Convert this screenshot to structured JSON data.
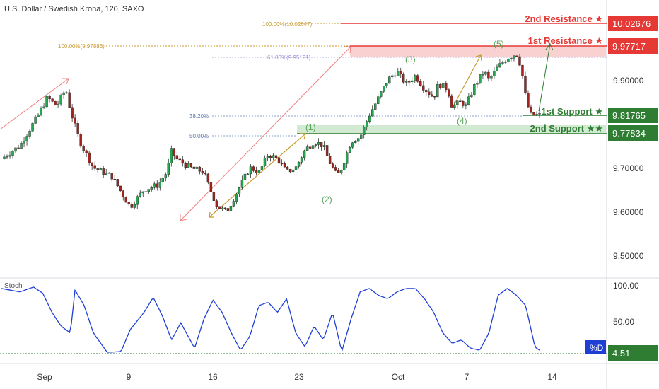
{
  "header": {
    "title": "U.S. Dollar / Swedish Krona, 120, SAXO"
  },
  "levels": [
    {
      "label": "2nd Resistance ★",
      "price": "10.02676",
      "color": "#e53935"
    },
    {
      "label": "1st Resistance ★",
      "price": "9.97717",
      "color": "#e53935"
    },
    {
      "label": "1st Support ★",
      "price": "9.81765",
      "color": "#2e7d32"
    },
    {
      "label": "2nd Support ★★",
      "price": "9.77834",
      "color": "#2e7d32"
    }
  ],
  "fib": {
    "ext1": "100.00%(10.02647)",
    "ext2": "100.00%(9.97886)",
    "ret618": "61.80%(9.95191)",
    "ret382": "38.20%",
    "ret50": "50.00%"
  },
  "waves": [
    "(1)",
    "(2)",
    "(3)",
    "(4)",
    "(5)"
  ],
  "stoch": {
    "label": "Stoch",
    "series_tag": "%D",
    "value": "4.51"
  },
  "chart_data": {
    "type": "candlestick",
    "title": "U.S. Dollar / Swedish Krona, 120, SAXO",
    "price_axis": {
      "ticks": [
        9.9,
        9.8,
        9.7,
        9.6,
        9.5
      ],
      "tick_labels": [
        "9.90000",
        "9.80000",
        "9.70000",
        "9.60000",
        "9.50000"
      ],
      "range": [
        9.43,
        10.04
      ]
    },
    "time_axis": {
      "tick_labels": [
        "Sep",
        "9",
        "16",
        "23",
        "Oct",
        "7",
        "14"
      ]
    },
    "stoch_axis": {
      "ticks": [
        100,
        50
      ],
      "tick_labels": [
        "100.00",
        "50.00"
      ],
      "range": [
        0,
        100
      ]
    },
    "close_path": [
      [
        0,
        9.72
      ],
      [
        4,
        9.75
      ],
      [
        8,
        9.82
      ],
      [
        10,
        9.86
      ],
      [
        12,
        9.84
      ],
      [
        14,
        9.88
      ],
      [
        15,
        9.83
      ],
      [
        17,
        9.76
      ],
      [
        20,
        9.7
      ],
      [
        24,
        9.68
      ],
      [
        28,
        9.61
      ],
      [
        31,
        9.65
      ],
      [
        34,
        9.66
      ],
      [
        36,
        9.69
      ],
      [
        37,
        9.74
      ],
      [
        38,
        9.72
      ],
      [
        41,
        9.7
      ],
      [
        44,
        9.69
      ],
      [
        45,
        9.66
      ],
      [
        47,
        9.61
      ],
      [
        49,
        9.6
      ],
      [
        50,
        9.62
      ],
      [
        52,
        9.66
      ],
      [
        54,
        9.7
      ],
      [
        56,
        9.69
      ],
      [
        58,
        9.73
      ],
      [
        60,
        9.72
      ],
      [
        62,
        9.69
      ],
      [
        64,
        9.7
      ],
      [
        66,
        9.74
      ],
      [
        68,
        9.76
      ],
      [
        70,
        9.75
      ],
      [
        71,
        9.72
      ],
      [
        73,
        9.68
      ],
      [
        74,
        9.7
      ],
      [
        76,
        9.76
      ],
      [
        78,
        9.77
      ],
      [
        80,
        9.82
      ],
      [
        82,
        9.86
      ],
      [
        84,
        9.9
      ],
      [
        86,
        9.92
      ],
      [
        88,
        9.89
      ],
      [
        90,
        9.91
      ],
      [
        92,
        9.88
      ],
      [
        94,
        9.86
      ],
      [
        95,
        9.89
      ],
      [
        97,
        9.88
      ],
      [
        98,
        9.84
      ],
      [
        100,
        9.85
      ],
      [
        101,
        9.84
      ],
      [
        103,
        9.89
      ],
      [
        105,
        9.92
      ],
      [
        106,
        9.9
      ],
      [
        108,
        9.93
      ],
      [
        110,
        9.95
      ],
      [
        112,
        9.96
      ],
      [
        113,
        9.93
      ],
      [
        114,
        9.86
      ],
      [
        115,
        9.82
      ],
      [
        117,
        9.82
      ]
    ],
    "stoch_d_path": [
      [
        0,
        95
      ],
      [
        4,
        90
      ],
      [
        7,
        97
      ],
      [
        9,
        88
      ],
      [
        11,
        60
      ],
      [
        13,
        40
      ],
      [
        15,
        30
      ],
      [
        16,
        93
      ],
      [
        18,
        70
      ],
      [
        20,
        30
      ],
      [
        23,
        2
      ],
      [
        26,
        3
      ],
      [
        28,
        35
      ],
      [
        31,
        60
      ],
      [
        33,
        82
      ],
      [
        35,
        55
      ],
      [
        37,
        20
      ],
      [
        39,
        45
      ],
      [
        42,
        8
      ],
      [
        44,
        50
      ],
      [
        46,
        78
      ],
      [
        48,
        60
      ],
      [
        50,
        30
      ],
      [
        52,
        5
      ],
      [
        54,
        25
      ],
      [
        56,
        70
      ],
      [
        58,
        75
      ],
      [
        60,
        60
      ],
      [
        62,
        80
      ],
      [
        64,
        30
      ],
      [
        66,
        10
      ],
      [
        68,
        40
      ],
      [
        70,
        20
      ],
      [
        72,
        60
      ],
      [
        74,
        3
      ],
      [
        76,
        50
      ],
      [
        78,
        90
      ],
      [
        80,
        95
      ],
      [
        82,
        85
      ],
      [
        84,
        80
      ],
      [
        86,
        90
      ],
      [
        88,
        95
      ],
      [
        90,
        95
      ],
      [
        92,
        80
      ],
      [
        94,
        60
      ],
      [
        96,
        30
      ],
      [
        98,
        15
      ],
      [
        100,
        20
      ],
      [
        102,
        8
      ],
      [
        104,
        5
      ],
      [
        106,
        30
      ],
      [
        108,
        85
      ],
      [
        110,
        95
      ],
      [
        112,
        85
      ],
      [
        114,
        70
      ],
      [
        116,
        10
      ],
      [
        117,
        5
      ]
    ]
  }
}
